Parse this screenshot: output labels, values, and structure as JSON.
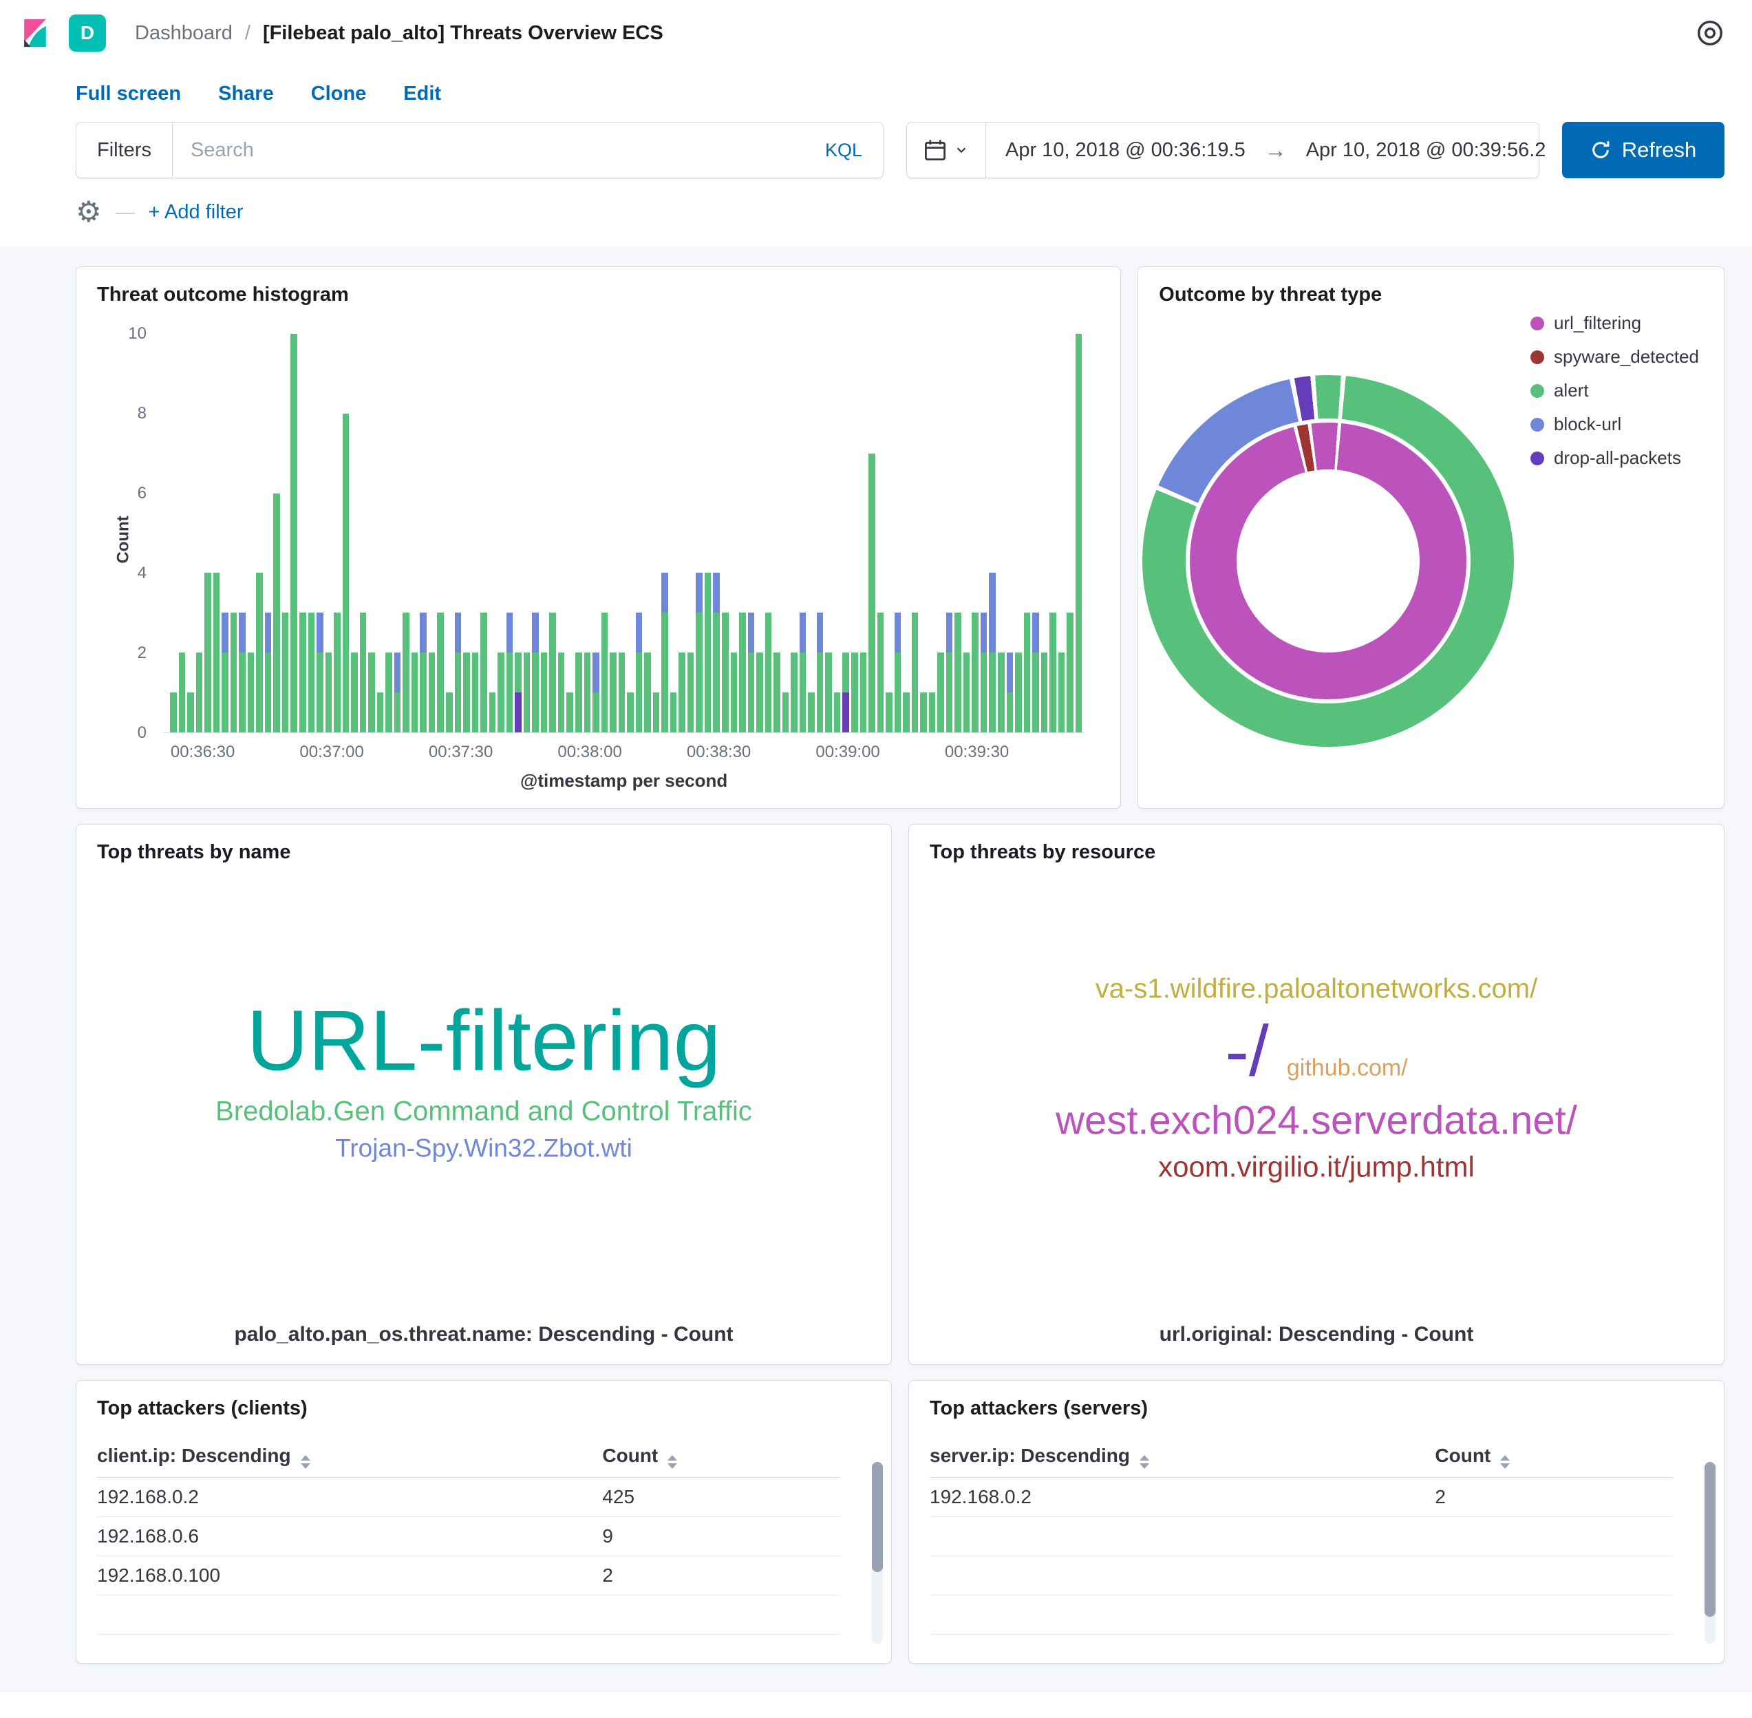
{
  "palette": {
    "green": "#57c17b",
    "periwinkle": "#6f87d8",
    "purple": "#663db8",
    "magenta": "#bc52bc",
    "brick": "#9e3533",
    "teal": "#00a69b",
    "olive": "#bfaf40",
    "tan": "#daa05d",
    "link_blue": "#006BB4"
  },
  "header": {
    "space_badge": "D",
    "breadcrumb_root": "Dashboard",
    "breadcrumb_separator": "/",
    "breadcrumb_current": "[Filebeat palo_alto] Threats Overview ECS"
  },
  "toolbar": {
    "links": [
      "Full screen",
      "Share",
      "Clone",
      "Edit"
    ]
  },
  "query_bar": {
    "filters_label": "Filters",
    "search_placeholder": "Search",
    "kql_label": "KQL",
    "date_start": "Apr 10, 2018 @ 00:36:19.5",
    "date_end": "Apr 10, 2018 @ 00:39:56.2",
    "refresh_label": "Refresh",
    "add_filter_label": "+ Add filter"
  },
  "panels": {
    "histogram": {
      "title": "Threat outcome histogram"
    },
    "donut": {
      "title": "Outcome by threat type",
      "legend": [
        {
          "label": "url_filtering",
          "color": "#bc52bc"
        },
        {
          "label": "spyware_detected",
          "color": "#9e3533"
        },
        {
          "label": "alert",
          "color": "#57c17b"
        },
        {
          "label": "block-url",
          "color": "#6f87d8"
        },
        {
          "label": "drop-all-packets",
          "color": "#663db8"
        }
      ]
    },
    "threats_by_name": {
      "title": "Top threats by name",
      "caption": "palo_alto.pan_os.threat.name: Descending - Count",
      "lines": [
        [
          {
            "text": "URL-filtering",
            "color": "#00a69b",
            "size": 124
          }
        ],
        [
          {
            "text": "Bredolab.Gen Command and Control Traffic",
            "color": "#57c17b",
            "size": 40
          }
        ],
        [
          {
            "text": "Trojan-Spy.Win32.Zbot.wti",
            "color": "#6f87d8",
            "size": 37
          }
        ]
      ]
    },
    "threats_by_resource": {
      "title": "Top threats by resource",
      "caption": "url.original: Descending - Count",
      "lines": [
        [
          {
            "text": "va-s1.wildfire.paloaltonetworks.com/",
            "color": "#bfaf40",
            "size": 40
          }
        ],
        [
          {
            "text": "-/",
            "color": "#663db8",
            "size": 104
          },
          {
            "text": "github.com/",
            "color": "#daa05d",
            "size": 34
          }
        ],
        [
          {
            "text": "west.exch024.serverdata.net/",
            "color": "#bc52bc",
            "size": 58
          }
        ],
        [
          {
            "text": "xoom.virgilio.it/jump.html",
            "color": "#9e3533",
            "size": 42
          }
        ]
      ]
    },
    "clients": {
      "title": "Top attackers (clients)",
      "columns": [
        "client.ip: Descending",
        "Count"
      ],
      "rows": [
        [
          "192.168.0.2",
          "425"
        ],
        [
          "192.168.0.6",
          "9"
        ],
        [
          "192.168.0.100",
          "2"
        ]
      ]
    },
    "servers": {
      "title": "Top attackers (servers)",
      "columns": [
        "server.ip: Descending",
        "Count"
      ],
      "rows": [
        [
          "192.168.0.2",
          "2"
        ]
      ]
    }
  },
  "chart_data": [
    {
      "type": "bar",
      "title": "Threat outcome histogram",
      "xlabel": "@timestamp per second",
      "ylabel": "Count",
      "ylim": [
        0,
        10
      ],
      "yticks": [
        0,
        2,
        4,
        6,
        8,
        10
      ],
      "xticks": [
        "00:36:30",
        "00:37:00",
        "00:37:30",
        "00:38:00",
        "00:38:30",
        "00:39:00",
        "00:39:30"
      ],
      "stacked": true,
      "series_colors": {
        "alert": "#57c17b",
        "block-url": "#6f87d8",
        "drop-all-packets": "#663db8"
      },
      "bars_format": "[alert, block-url, drop-all-packets] count per second bucket",
      "bars": [
        [
          1,
          0,
          0
        ],
        [
          2,
          0,
          0
        ],
        [
          1,
          0,
          0
        ],
        [
          2,
          0,
          0
        ],
        [
          4,
          0,
          0
        ],
        [
          4,
          0,
          0
        ],
        [
          2,
          1,
          0
        ],
        [
          3,
          0,
          0
        ],
        [
          2,
          1,
          0
        ],
        [
          2,
          0,
          0
        ],
        [
          4,
          0,
          0
        ],
        [
          2,
          1,
          0
        ],
        [
          6,
          0,
          0
        ],
        [
          3,
          0,
          0
        ],
        [
          10,
          0,
          0
        ],
        [
          3,
          0,
          0
        ],
        [
          3,
          0,
          0
        ],
        [
          2,
          1,
          0
        ],
        [
          2,
          0,
          0
        ],
        [
          3,
          0,
          0
        ],
        [
          8,
          0,
          0
        ],
        [
          2,
          0,
          0
        ],
        [
          3,
          0,
          0
        ],
        [
          2,
          0,
          0
        ],
        [
          1,
          0,
          0
        ],
        [
          2,
          0,
          0
        ],
        [
          1,
          1,
          0
        ],
        [
          3,
          0,
          0
        ],
        [
          2,
          0,
          0
        ],
        [
          2,
          1,
          0
        ],
        [
          2,
          0,
          0
        ],
        [
          3,
          0,
          0
        ],
        [
          1,
          0,
          0
        ],
        [
          2,
          1,
          0
        ],
        [
          2,
          0,
          0
        ],
        [
          2,
          0,
          0
        ],
        [
          3,
          0,
          0
        ],
        [
          1,
          0,
          0
        ],
        [
          2,
          0,
          0
        ],
        [
          2,
          1,
          0
        ],
        [
          1,
          0,
          1
        ],
        [
          2,
          0,
          0
        ],
        [
          2,
          1,
          0
        ],
        [
          2,
          0,
          0
        ],
        [
          3,
          0,
          0
        ],
        [
          2,
          0,
          0
        ],
        [
          1,
          0,
          0
        ],
        [
          2,
          0,
          0
        ],
        [
          2,
          0,
          0
        ],
        [
          1,
          1,
          0
        ],
        [
          3,
          0,
          0
        ],
        [
          2,
          0,
          0
        ],
        [
          2,
          0,
          0
        ],
        [
          1,
          0,
          0
        ],
        [
          2,
          1,
          0
        ],
        [
          2,
          0,
          0
        ],
        [
          1,
          0,
          0
        ],
        [
          3,
          1,
          0
        ],
        [
          1,
          0,
          0
        ],
        [
          2,
          0,
          0
        ],
        [
          2,
          0,
          0
        ],
        [
          3,
          1,
          0
        ],
        [
          4,
          0,
          0
        ],
        [
          3,
          1,
          0
        ],
        [
          3,
          0,
          0
        ],
        [
          2,
          0,
          0
        ],
        [
          3,
          0,
          0
        ],
        [
          2,
          1,
          0
        ],
        [
          2,
          0,
          0
        ],
        [
          3,
          0,
          0
        ],
        [
          2,
          0,
          0
        ],
        [
          1,
          0,
          0
        ],
        [
          2,
          0,
          0
        ],
        [
          2,
          1,
          0
        ],
        [
          1,
          0,
          0
        ],
        [
          2,
          1,
          0
        ],
        [
          2,
          0,
          0
        ],
        [
          1,
          0,
          0
        ],
        [
          1,
          0,
          1
        ],
        [
          2,
          0,
          0
        ],
        [
          2,
          0,
          0
        ],
        [
          7,
          0,
          0
        ],
        [
          3,
          0,
          0
        ],
        [
          1,
          0,
          0
        ],
        [
          2,
          1,
          0
        ],
        [
          1,
          0,
          0
        ],
        [
          3,
          0,
          0
        ],
        [
          1,
          0,
          0
        ],
        [
          1,
          0,
          0
        ],
        [
          2,
          0,
          0
        ],
        [
          2,
          1,
          0
        ],
        [
          3,
          0,
          0
        ],
        [
          2,
          0,
          0
        ],
        [
          3,
          0,
          0
        ],
        [
          2,
          1,
          0
        ],
        [
          2,
          2,
          0
        ],
        [
          2,
          0,
          0
        ],
        [
          1,
          1,
          0
        ],
        [
          2,
          0,
          0
        ],
        [
          3,
          0,
          0
        ],
        [
          2,
          1,
          0
        ],
        [
          2,
          0,
          0
        ],
        [
          3,
          0,
          0
        ],
        [
          2,
          0,
          0
        ],
        [
          3,
          0,
          0
        ],
        [
          10,
          0,
          0
        ]
      ]
    },
    {
      "type": "pie",
      "title": "Outcome by threat type",
      "donut": true,
      "legend_position": "top-right",
      "outer_ring_dimension": "outcome",
      "inner_ring_dimension": "threat type",
      "outer_slices": [
        {
          "label": "alert",
          "deg": 4,
          "color": "#57c17b"
        },
        {
          "label": "alert",
          "deg": 287,
          "color": "#57c17b"
        },
        {
          "label": "block-url",
          "deg": 54,
          "color": "#6f87d8"
        },
        {
          "label": "drop-all-packets",
          "deg": 5,
          "color": "#663db8"
        },
        {
          "label": "alert",
          "deg": 4,
          "color": "#57c17b"
        }
      ],
      "inner_slices": [
        {
          "label": "url_filtering",
          "deg": 4,
          "color": "#bc52bc"
        },
        {
          "label": "url_filtering",
          "deg": 340,
          "color": "#bc52bc"
        },
        {
          "label": "spyware_detected",
          "deg": 4.5,
          "color": "#9e3533"
        },
        {
          "label": "url_filtering",
          "deg": 7,
          "color": "#bc52bc"
        }
      ]
    }
  ]
}
